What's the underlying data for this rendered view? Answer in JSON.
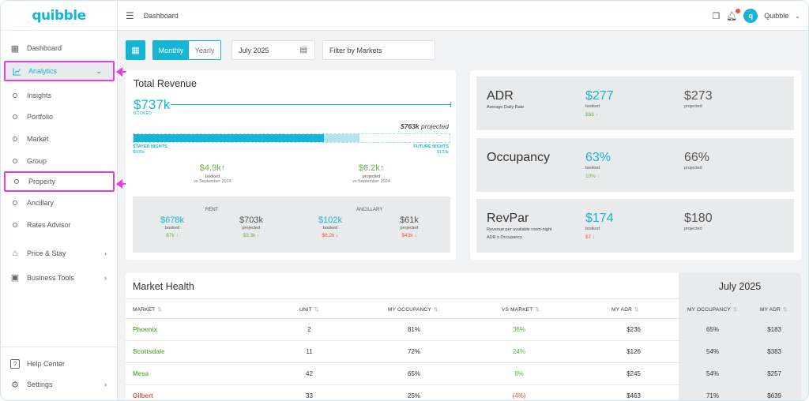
{
  "app": {
    "logo": "quibble",
    "breadcrumb": "Dashboard",
    "user": "Quibble",
    "avatar": "q"
  },
  "sidebar": {
    "items": [
      {
        "label": "Dashboard",
        "icon": "grid-icon"
      },
      {
        "label": "Analytics",
        "icon": "chart-icon"
      }
    ],
    "analytics_sub": [
      "Insights",
      "Portfolio",
      "Market",
      "Group",
      "Property",
      "Ancillary",
      "Rates Advisor"
    ],
    "more": [
      {
        "label": "Price & Stay",
        "icon": "home-dollar-icon"
      },
      {
        "label": "Business Tools",
        "icon": "briefcase-icon"
      }
    ],
    "bottom": [
      {
        "label": "Help Center",
        "icon": "help-icon"
      },
      {
        "label": "Settings",
        "icon": "gear-icon"
      }
    ]
  },
  "filters": {
    "period_options": [
      "Monthly",
      "Yearly"
    ],
    "selected_period": "Monthly",
    "date": "July 2025",
    "markets_placeholder": "Filter by Markets"
  },
  "total_revenue": {
    "title": "Total Revenue",
    "booked_value": "$737k",
    "booked_label": "BOOKED",
    "projected_value": "$763k",
    "projected_label": "projected",
    "stayed_label": "STAYED NIGHTS",
    "stayed_value": "$605k",
    "future_label": "FUTURE NIGHTS",
    "future_value": "$133k",
    "stayed_fraction": 0.603,
    "future_fraction": 0.113,
    "booked_delta": {
      "value": "$4.9k",
      "label": "booked",
      "compare": "vs September 2024"
    },
    "projected_delta": {
      "value": "$6.2k",
      "label": "projected",
      "compare": "vs September 2024"
    },
    "rent": {
      "title": "RENT",
      "booked": {
        "value": "$678k",
        "label": "booked",
        "delta": "$7k"
      },
      "projected": {
        "value": "$703k",
        "label": "projected",
        "delta": "$3.3k"
      }
    },
    "ancillary": {
      "title": "ANCILLARY",
      "booked": {
        "value": "$102k",
        "label": "booked",
        "delta": "$6.2k"
      },
      "projected": {
        "value": "$61k",
        "label": "projected",
        "delta": "$43k"
      }
    }
  },
  "kpis": [
    {
      "name": "ADR",
      "sub": "Average Daily Rate",
      "sub2": "",
      "booked": "$277",
      "booked_label": "booked",
      "delta": "$66",
      "delta_dir": "up",
      "projected": "$273",
      "projected_label": "projected"
    },
    {
      "name": "Occupancy",
      "sub": "",
      "sub2": "",
      "booked": "63%",
      "booked_label": "booked",
      "delta": "10%",
      "delta_dir": "up",
      "projected": "66%",
      "projected_label": "projected"
    },
    {
      "name": "RevPar",
      "sub": "Revenue per available room-night",
      "sub2": "ADR x Occupancy",
      "booked": "$174",
      "booked_label": "booked",
      "delta": "$7",
      "delta_dir": "down",
      "projected": "$180",
      "projected_label": "projected"
    }
  ],
  "market_health": {
    "title": "Market Health",
    "side_title": "July 2025",
    "columns": [
      "MARKET",
      "UNIT",
      "MY OCCUPANCY",
      "VS MARKET",
      "MY ADR"
    ],
    "side_columns": [
      "MY OCCUPANCY",
      "MY ADR"
    ],
    "rows": [
      {
        "market": "Phoenix",
        "status": "good",
        "unit": "2",
        "occ": "81%",
        "vs": "36%",
        "vs_dir": "up",
        "adr": "$236",
        "s_occ": "65%",
        "s_adr": "$183"
      },
      {
        "market": "Scottsdale",
        "status": "good",
        "unit": "11",
        "occ": "72%",
        "vs": "24%",
        "vs_dir": "up",
        "adr": "$126",
        "s_occ": "54%",
        "s_adr": "$383"
      },
      {
        "market": "Mesa",
        "status": "good",
        "unit": "42",
        "occ": "65%",
        "vs": "8%",
        "vs_dir": "up",
        "adr": "$245",
        "s_occ": "54%",
        "s_adr": "$257"
      },
      {
        "market": "Gilbert",
        "status": "bad",
        "unit": "33",
        "occ": "25%",
        "vs": "(4%)",
        "vs_dir": "down",
        "adr": "$463",
        "s_occ": "71%",
        "s_adr": "$639"
      }
    ]
  },
  "colors": {
    "accent": "#16b5d3",
    "green": "#6ab04c",
    "red": "#e8543d",
    "highlight": "#e83de0"
  }
}
